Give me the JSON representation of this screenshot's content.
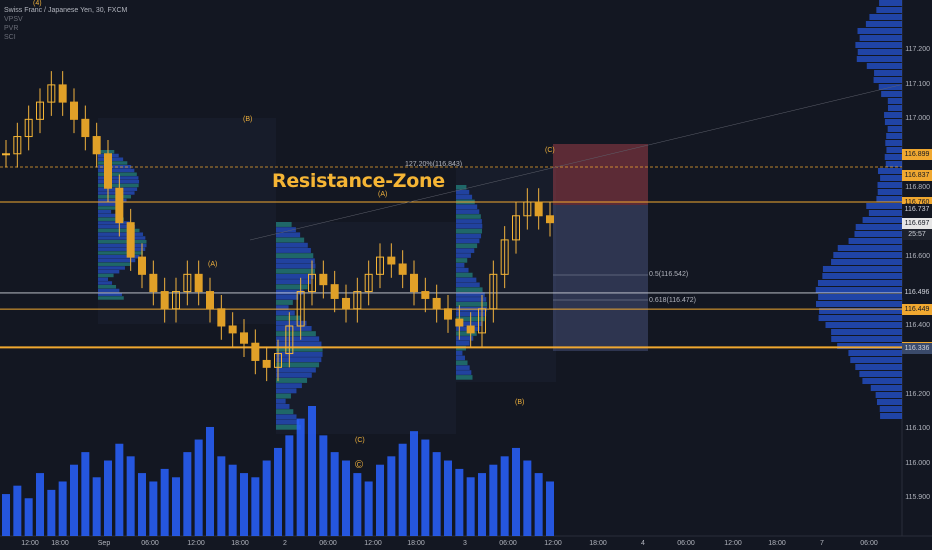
{
  "legend": {
    "title": "Swiss Franc / Japanese Yen, 30, FXCM",
    "indicators": [
      "VPSV",
      "PVR",
      "SCI"
    ]
  },
  "annotations": {
    "resistance_label": "Resistance-Zone",
    "fib_extension": "127.20%(116.843)",
    "fib_05": "0.5(116.542)",
    "fib_0618": "0.618(116.472)",
    "countdown": "25:57",
    "waves": [
      {
        "text": "(4)"
      },
      {
        "text": "(B)"
      },
      {
        "text": "(A)"
      },
      {
        "text": "(A)"
      },
      {
        "text": "(C)"
      },
      {
        "text": "(C)"
      },
      {
        "text": "(B)"
      },
      {
        "text": "©"
      }
    ]
  },
  "price_tags": [
    {
      "value": "116.899",
      "bg": "#f0a830",
      "fg": "#131722"
    },
    {
      "value": "116.837",
      "bg": "#f0a830",
      "fg": "#131722"
    },
    {
      "value": "116.760",
      "bg": "#f0a830",
      "fg": "#131722"
    },
    {
      "value": "116.737",
      "bg": "#131722",
      "fg": "#d1d4dc"
    },
    {
      "value": "116.697",
      "bg": "#e6e6e6",
      "fg": "#131722"
    },
    {
      "value": "116.496",
      "bg": "#131722",
      "fg": "#d1d4dc"
    },
    {
      "value": "116.449",
      "bg": "#f0a830",
      "fg": "#131722"
    },
    {
      "value": "116.338",
      "bg": "#f0a830",
      "fg": "#131722"
    },
    {
      "value": "116.336",
      "bg": "#3a4a6b",
      "fg": "#d1d4dc"
    }
  ],
  "chart_data": {
    "type": "candlestick",
    "symbol": "CHFJPY",
    "y_ticks": [
      "117.200",
      "117.100",
      "117.000",
      "116.800",
      "116.600",
      "116.400",
      "116.200",
      "116.100",
      "116.000",
      "115.900"
    ],
    "x_ticks": [
      "12:00",
      "18:00",
      "Sep",
      "06:00",
      "12:00",
      "18:00",
      "2",
      "06:00",
      "12:00",
      "18:00",
      "3",
      "06:00",
      "12:00",
      "18:00",
      "4",
      "06:00",
      "12:00",
      "18:00",
      "7",
      "06:00"
    ],
    "ylim": [
      115.86,
      117.3
    ],
    "levels": {
      "resistance": 116.76,
      "support_1": 116.449,
      "support_2": 116.338,
      "last": 116.697,
      "fib_1272": 116.843,
      "fib_05": 116.542,
      "fib_0618": 116.472
    },
    "candles_close": [
      116.9,
      116.95,
      117.0,
      117.05,
      117.1,
      117.05,
      117.0,
      116.95,
      116.9,
      116.8,
      116.7,
      116.6,
      116.55,
      116.5,
      116.45,
      116.5,
      116.55,
      116.5,
      116.45,
      116.4,
      116.38,
      116.35,
      116.3,
      116.28,
      116.32,
      116.4,
      116.5,
      116.55,
      116.52,
      116.48,
      116.45,
      116.5,
      116.55,
      116.6,
      116.58,
      116.55,
      116.5,
      116.48,
      116.45,
      116.42,
      116.4,
      116.38,
      116.45,
      116.55,
      116.65,
      116.72,
      116.76,
      116.72,
      116.7
    ],
    "volume": [
      20,
      24,
      18,
      30,
      22,
      26,
      34,
      40,
      28,
      36,
      44,
      38,
      30,
      26,
      32,
      28,
      40,
      46,
      52,
      38,
      34,
      30,
      28,
      36,
      42,
      48,
      56,
      62,
      48,
      40,
      36,
      30,
      26,
      34,
      38,
      44,
      50,
      46,
      40,
      36,
      32,
      28,
      30,
      34,
      38,
      42,
      36,
      30,
      26
    ]
  }
}
